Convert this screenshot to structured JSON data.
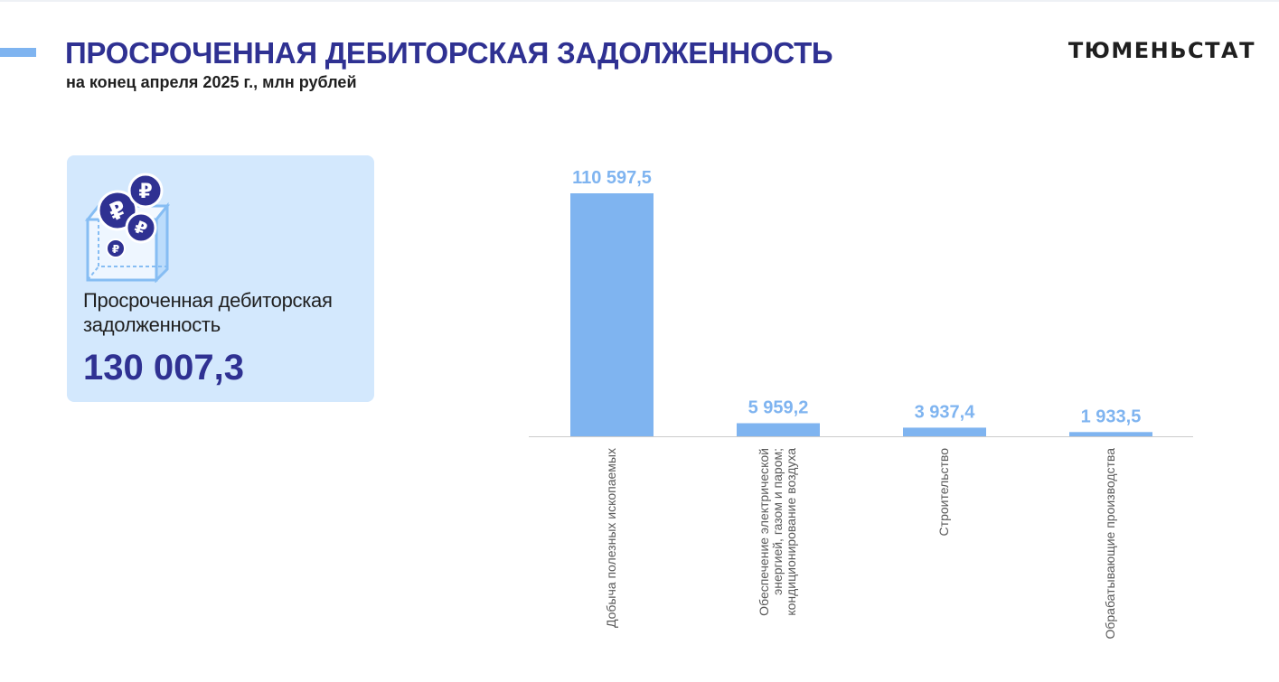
{
  "header": {
    "title": "ПРОСРОЧЕННАЯ ДЕБИТОРСКАЯ ЗАДОЛЖЕННОСТЬ",
    "subtitle": "на конец апреля 2025 г., млн рублей",
    "logo": "ТЮМЕНЬСТАТ"
  },
  "kpi": {
    "label": "Просроченная дебиторская задолженность",
    "value": "130 007,3",
    "icon": "ruble-coins-box-icon"
  },
  "colors": {
    "accent": "#7fb4f0",
    "brand": "#2f3192",
    "bar": "#7fb4f0",
    "card": "#d3e8fd"
  },
  "chart_data": {
    "type": "bar",
    "title": "",
    "xlabel": "",
    "ylabel": "",
    "categories": [
      [
        "Добыча полезных ископаемых"
      ],
      [
        "Обеспечение электрической",
        "энергией, газом и паром;",
        "кондиционирование  воздуха"
      ],
      [
        "Строительство"
      ],
      [
        "Обрабатывающие производства"
      ]
    ],
    "values": [
      110597.5,
      5959.2,
      3937.4,
      1933.5
    ],
    "value_labels": [
      "110 597,5",
      "5 959,2",
      "3 937,4",
      "1 933,5"
    ],
    "ylim": [
      0,
      110597.5
    ],
    "grid": false,
    "legend": "none"
  }
}
